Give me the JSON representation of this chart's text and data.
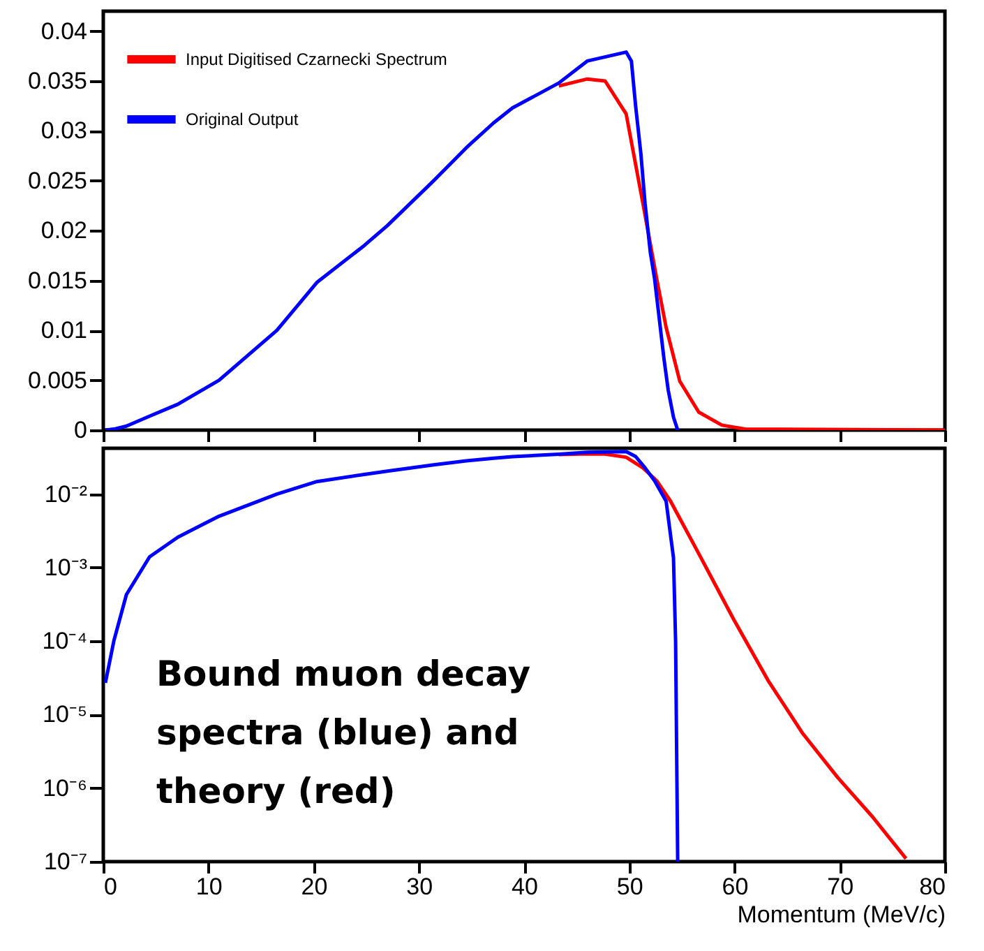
{
  "chart_data": [
    {
      "type": "line",
      "xlim": [
        0,
        80
      ],
      "xticks": [
        0,
        10,
        20,
        30,
        40,
        50,
        60,
        70,
        80
      ],
      "ylim": [
        0,
        0.042
      ],
      "yticks": [
        0,
        0.005,
        0.01,
        0.015,
        0.02,
        0.025,
        0.03,
        0.035,
        0.04
      ],
      "tick_labels": "y",
      "grid": false,
      "legend": "top left",
      "series": [
        {
          "name": "Input Digitised Czarnecki Spectrum",
          "color": "#ff0000",
          "x": [
            43.3,
            46,
            47.7,
            49.7,
            51.3,
            52.6,
            53.5,
            54.8,
            56.6,
            58.8,
            61,
            80
          ],
          "values": [
            0.0345,
            0.0352,
            0.035,
            0.0317,
            0.0227,
            0.0152,
            0.0103,
            0.0049,
            0.0018,
            0.0005,
            0.0001,
            0
          ]
        },
        {
          "name": "Original Output",
          "color": "#0000ff",
          "x": [
            0.2,
            1,
            2.2,
            4.4,
            7.1,
            11,
            16.5,
            20.3,
            24.8,
            27,
            31.4,
            34.5,
            37.1,
            38.9,
            43.3,
            46,
            49.7,
            50.2,
            50.6,
            51.1,
            51.5,
            52,
            52.4,
            52.8,
            53.3,
            53.7,
            54.2,
            54.6
          ],
          "values": [
            0,
            0.0001,
            0.0004,
            0.0014,
            0.0026,
            0.005,
            0.01,
            0.0148,
            0.0185,
            0.0205,
            0.025,
            0.0283,
            0.0308,
            0.0323,
            0.0348,
            0.037,
            0.0379,
            0.037,
            0.0325,
            0.0277,
            0.0227,
            0.0178,
            0.0152,
            0.0116,
            0.0071,
            0.004,
            0.0013,
            0
          ]
        }
      ]
    },
    {
      "type": "line",
      "log": "y",
      "xlim": [
        0,
        80
      ],
      "xticks": [
        0,
        10,
        20,
        30,
        40,
        50,
        60,
        70,
        80
      ],
      "xlabel": "Momentum (MeV/c)",
      "ylim": [
        1e-07,
        0.042
      ],
      "yticks": [
        {
          "value": 0.01,
          "label": "10⁻²"
        },
        {
          "value": 0.001,
          "label": "10⁻³"
        },
        {
          "value": 0.0001,
          "label": "10⁻⁴"
        },
        {
          "value": 1e-05,
          "label": "10⁻⁵"
        },
        {
          "value": 1e-06,
          "label": "10⁻⁶"
        },
        {
          "value": 1e-07,
          "label": "10⁻⁷"
        }
      ],
      "grid": false,
      "legend": false,
      "annotations": [
        "Bound muon decay spectra (blue) and theory (red)"
      ],
      "series": [
        {
          "color": "#ff0000",
          "x": [
            43.3,
            46,
            47.7,
            49.7,
            51.3,
            52.6,
            53.9,
            56.6,
            59.9,
            63.2,
            66.5,
            69.8,
            73.1,
            76.3
          ],
          "values": [
            0.0345,
            0.0352,
            0.035,
            0.0317,
            0.0227,
            0.0152,
            0.0081,
            0.00155,
            0.0002,
            2.9e-05,
            5.5e-06,
            1.4e-06,
            4.1e-07,
            1.1e-07
          ]
        },
        {
          "color": "#0000ff",
          "x": [
            0.2,
            1,
            2.2,
            4.4,
            7.1,
            11,
            16.5,
            20.3,
            24.8,
            27,
            31.4,
            34.5,
            37.1,
            38.9,
            43.3,
            46,
            49.7,
            50.6,
            51.5,
            52.4,
            53.5,
            54.2,
            54.4,
            54.6
          ],
          "values": [
            2.7e-05,
            0.0001,
            0.00043,
            0.0014,
            0.0026,
            0.005,
            0.01,
            0.0148,
            0.0185,
            0.0205,
            0.025,
            0.0283,
            0.0308,
            0.0323,
            0.0348,
            0.037,
            0.0379,
            0.0325,
            0.0227,
            0.0152,
            0.008,
            0.00136,
            0.0001,
            1e-07
          ]
        }
      ]
    }
  ]
}
